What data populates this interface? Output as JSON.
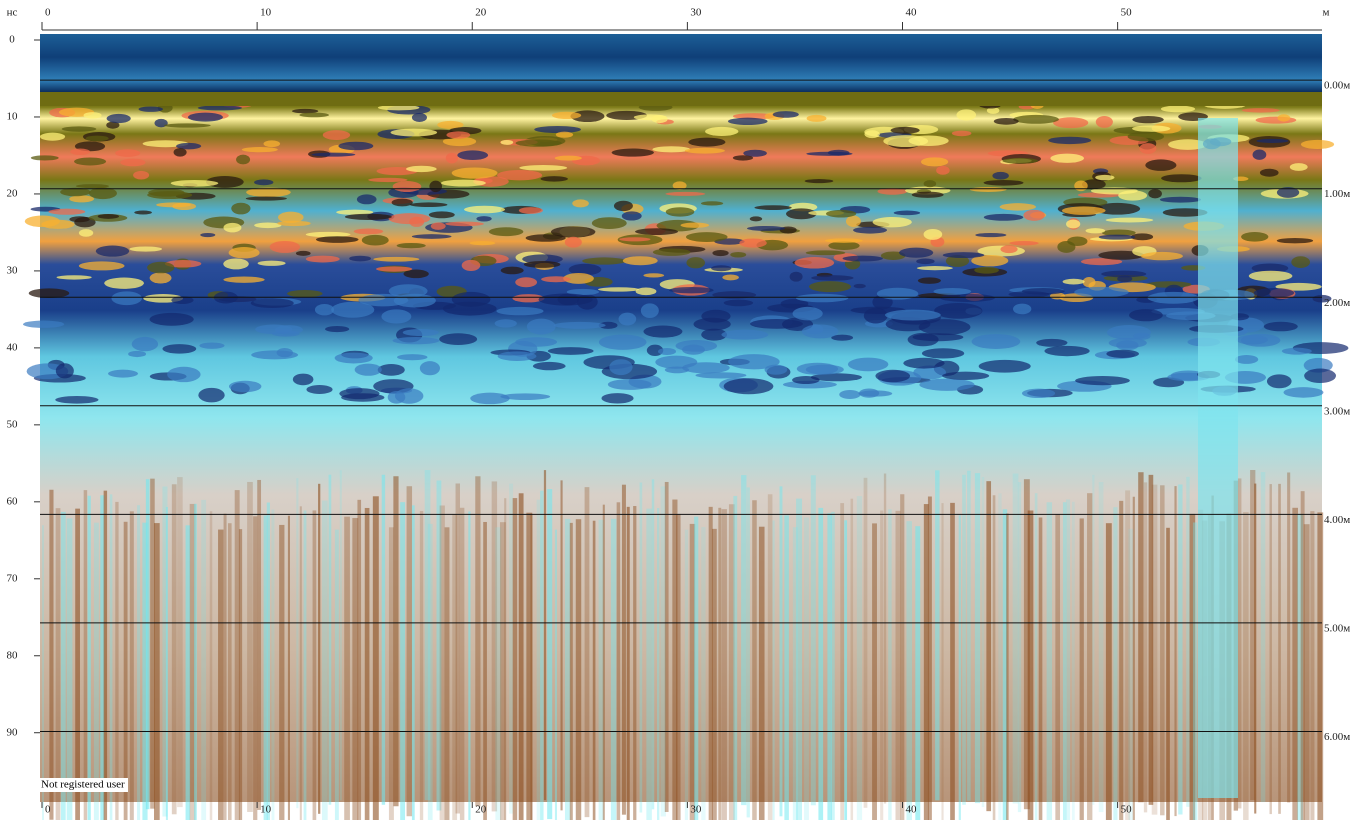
{
  "chart_data": {
    "type": "radargram",
    "x_unit": "м",
    "y_unit": "нс",
    "watermark": "Not registered user",
    "xlim": [
      0,
      59.5
    ],
    "xticks": [
      0,
      10,
      20,
      30,
      40,
      50
    ],
    "ylim": [
      0,
      99
    ],
    "yticks": [
      0,
      10,
      20,
      30,
      40,
      50,
      60,
      70,
      80,
      90
    ],
    "y2lim": [
      -0.37,
      6.65
    ],
    "y2ticks": [
      {
        "value": 0,
        "label": "0.00м"
      },
      {
        "value": 1,
        "label": "1.00м"
      },
      {
        "value": 2,
        "label": "2.00м"
      },
      {
        "value": 3,
        "label": "3.00м"
      },
      {
        "value": 4,
        "label": "4.00м"
      },
      {
        "value": 5,
        "label": "5.00м"
      },
      {
        "value": 6,
        "label": "6.00м"
      }
    ],
    "grid": true
  }
}
